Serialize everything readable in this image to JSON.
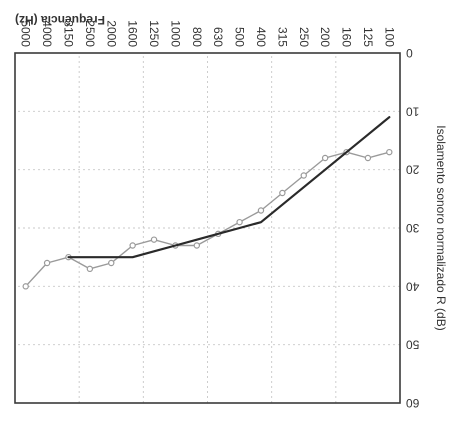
{
  "chart_data": {
    "type": "line",
    "orientation": "rotated-180",
    "xlabel": "Frequência (Hz)",
    "ylabel": "Isolamento sonoro normalizado R (dB)",
    "x": [
      "100",
      "125",
      "160",
      "200",
      "250",
      "315",
      "400",
      "500",
      "630",
      "800",
      "1000",
      "1250",
      "1600",
      "2000",
      "2500",
      "3150",
      "4000",
      "5000"
    ],
    "yticks": [
      "0",
      "10",
      "20",
      "30",
      "40",
      "50",
      "60"
    ],
    "ylim": [
      0,
      60
    ],
    "grid": true,
    "series": [
      {
        "style": "gray-line-with-markers",
        "color": "#9a9a9a",
        "values": [
          17,
          18,
          17,
          18,
          21,
          24,
          27,
          29,
          31,
          33,
          33,
          32,
          33,
          36,
          37,
          35,
          36,
          40
        ]
      },
      {
        "style": "black-line",
        "color": "#2a2a2a",
        "values": [
          11,
          14,
          17,
          20,
          23,
          26,
          29,
          30,
          31,
          32,
          33,
          34,
          35,
          35,
          35,
          35,
          null,
          null
        ]
      }
    ]
  }
}
